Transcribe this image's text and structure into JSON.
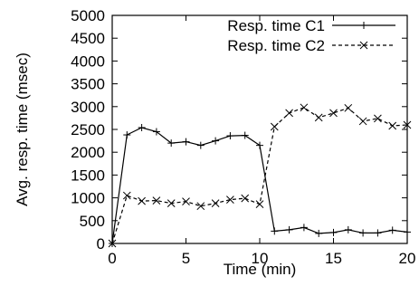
{
  "chart_data": {
    "type": "line",
    "xlabel": "Time (min)",
    "ylabel": "Avg. resp. time (msec)",
    "xlim": [
      0,
      20
    ],
    "ylim": [
      0,
      5000
    ],
    "xticks": [
      0,
      5,
      10,
      15,
      20
    ],
    "yticks": [
      0,
      500,
      1000,
      1500,
      2000,
      2500,
      3000,
      3500,
      4000,
      4500,
      5000
    ],
    "grid": false,
    "legend_position": "top-right",
    "series": [
      {
        "name": "Resp. time C1",
        "marker": "plus",
        "line_style": "solid",
        "color": "#000000",
        "x": [
          0,
          1,
          2,
          3,
          4,
          5,
          6,
          7,
          8,
          9,
          10,
          11,
          12,
          13,
          14,
          15,
          16,
          17,
          18,
          19,
          20
        ],
        "y": [
          0,
          2380,
          2540,
          2450,
          2200,
          2230,
          2150,
          2250,
          2360,
          2370,
          2150,
          270,
          300,
          350,
          220,
          240,
          300,
          230,
          230,
          290,
          250
        ]
      },
      {
        "name": "Resp. time C2",
        "marker": "cross",
        "line_style": "dashed",
        "color": "#000000",
        "x": [
          0,
          1,
          2,
          3,
          4,
          5,
          6,
          7,
          8,
          9,
          10,
          11,
          12,
          13,
          14,
          15,
          16,
          17,
          18,
          19,
          20
        ],
        "y": [
          0,
          1050,
          930,
          940,
          880,
          920,
          820,
          880,
          960,
          990,
          860,
          2560,
          2860,
          2980,
          2760,
          2860,
          2970,
          2680,
          2740,
          2580,
          2600
        ]
      }
    ]
  }
}
